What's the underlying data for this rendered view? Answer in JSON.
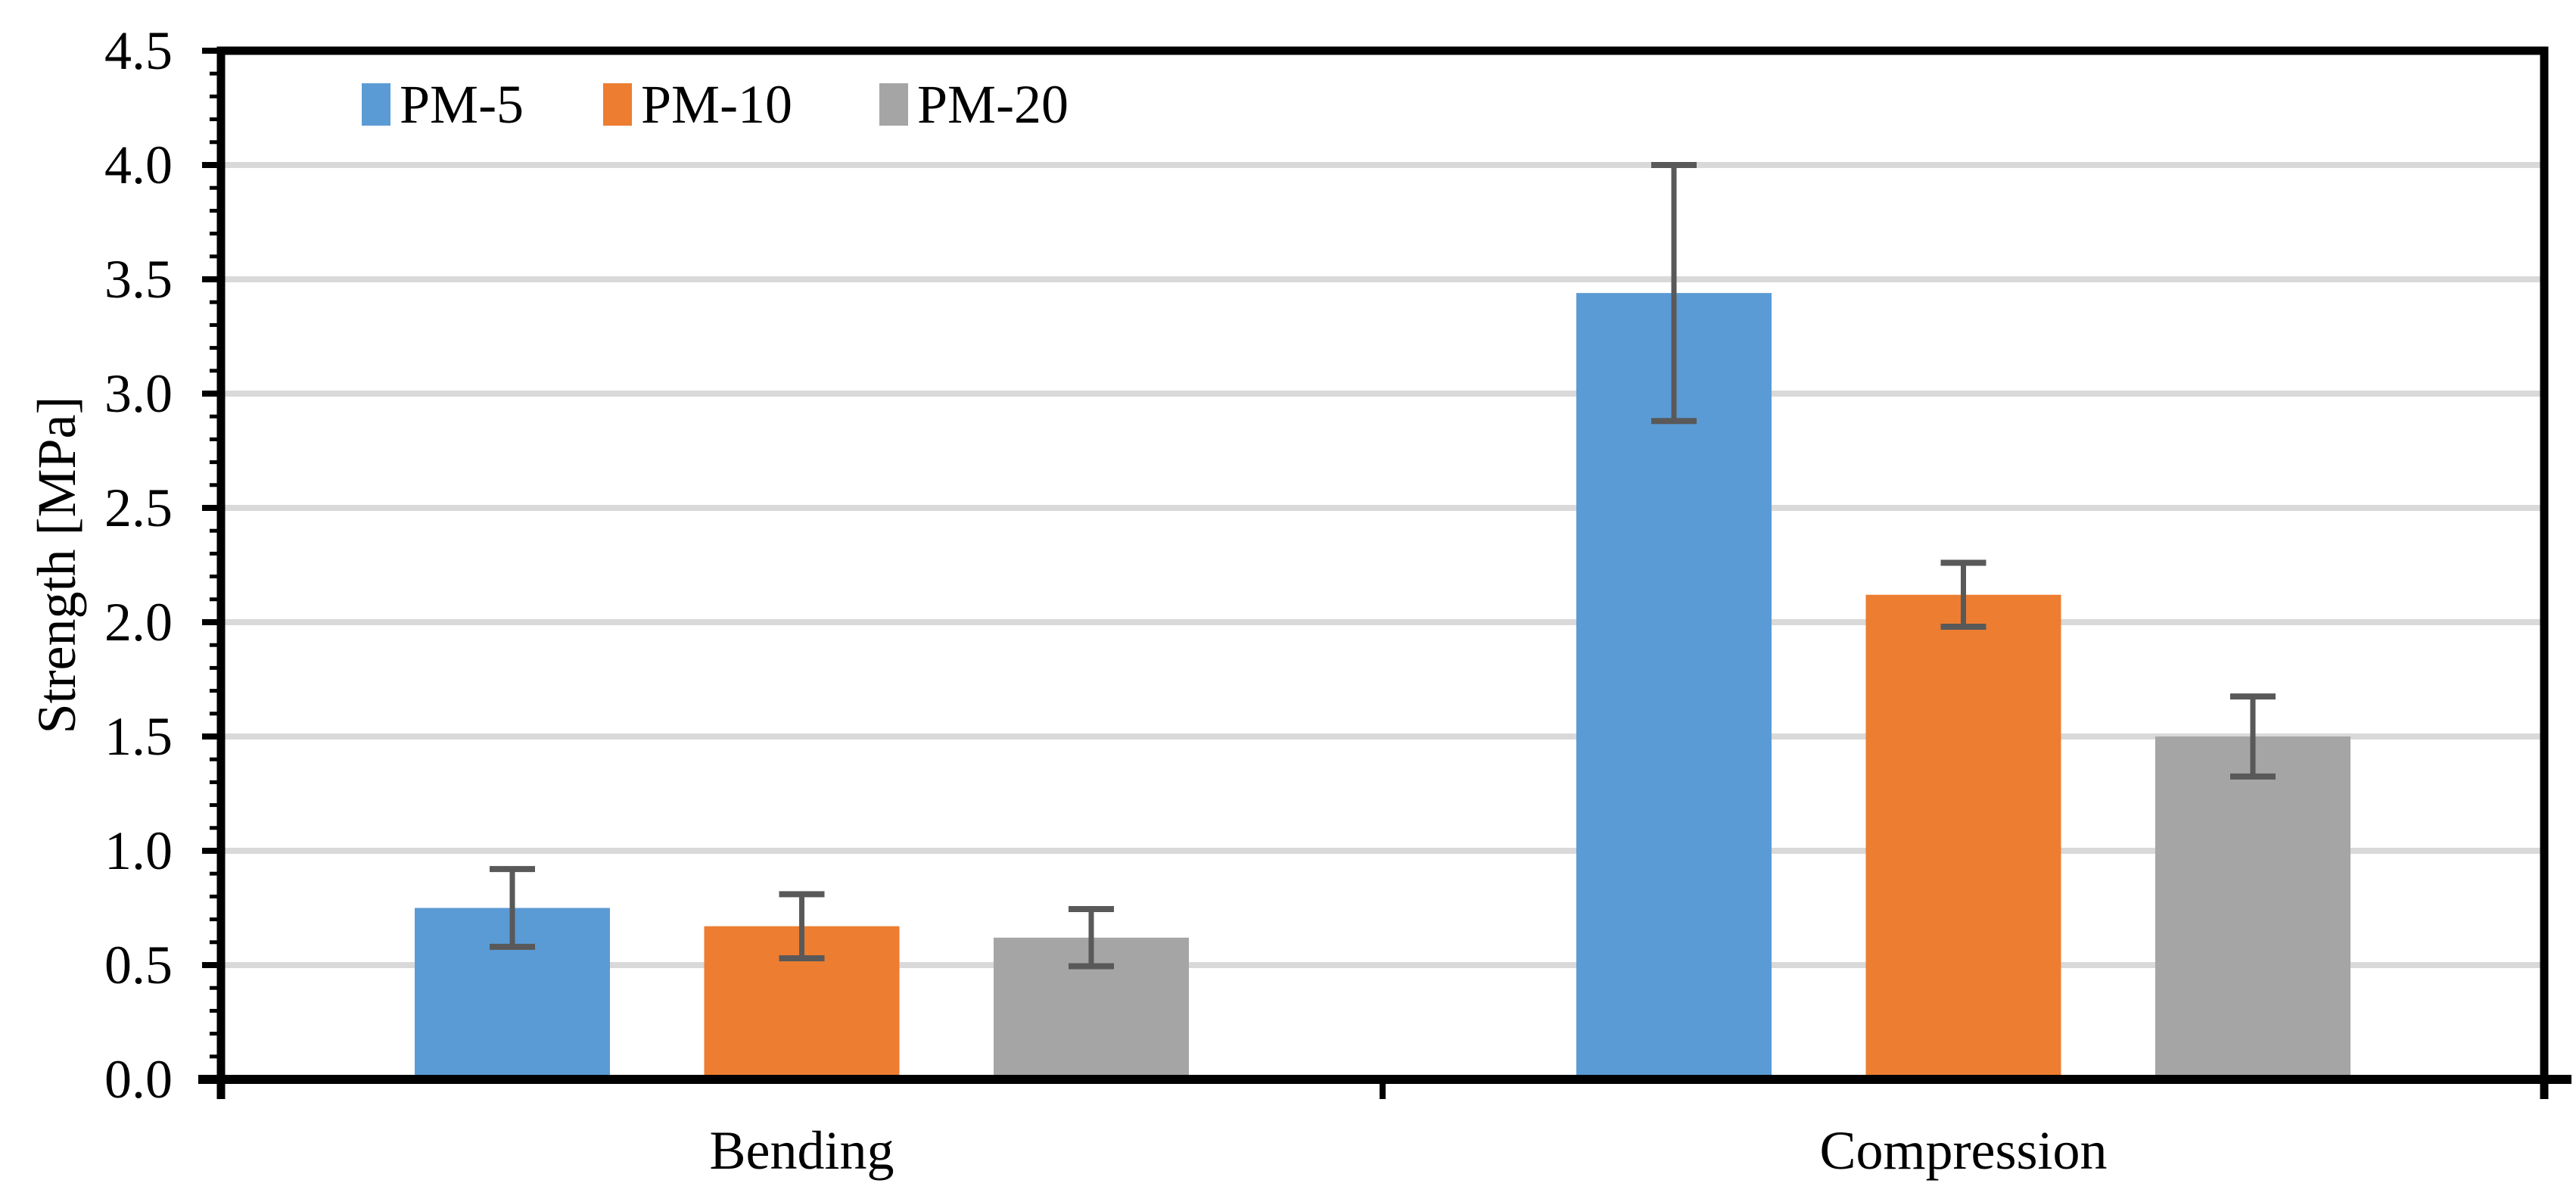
{
  "chart_data": {
    "type": "bar",
    "title": "",
    "xlabel": "",
    "ylabel": "Strength [MPa]",
    "ylim": [
      0,
      4.5
    ],
    "ytick_step": 0.5,
    "minor_tick_step": 0.1,
    "ytick_labels": [
      "0.0",
      "0.5",
      "1.0",
      "1.5",
      "2.0",
      "2.5",
      "3.0",
      "3.5",
      "4.0",
      "4.5"
    ],
    "grid": "horizontal-major",
    "legend_position": "top-left-inside",
    "categories": [
      "Bending",
      "Compression"
    ],
    "series": [
      {
        "name": "PM-5",
        "color": "#5B9BD5",
        "values": [
          0.75,
          3.44
        ],
        "errors": [
          0.17,
          0.56
        ]
      },
      {
        "name": "PM-10",
        "color": "#ED7D31",
        "values": [
          0.67,
          2.12
        ],
        "errors": [
          0.14,
          0.14
        ]
      },
      {
        "name": "PM-20",
        "color": "#A5A5A5",
        "values": [
          0.62,
          1.5
        ],
        "errors": [
          0.125,
          0.175
        ]
      }
    ],
    "colors": {
      "error_bar": "#595959",
      "gridline": "#D9D9D9",
      "axis": "#000000",
      "plot_background": "#FFFFFF"
    }
  }
}
